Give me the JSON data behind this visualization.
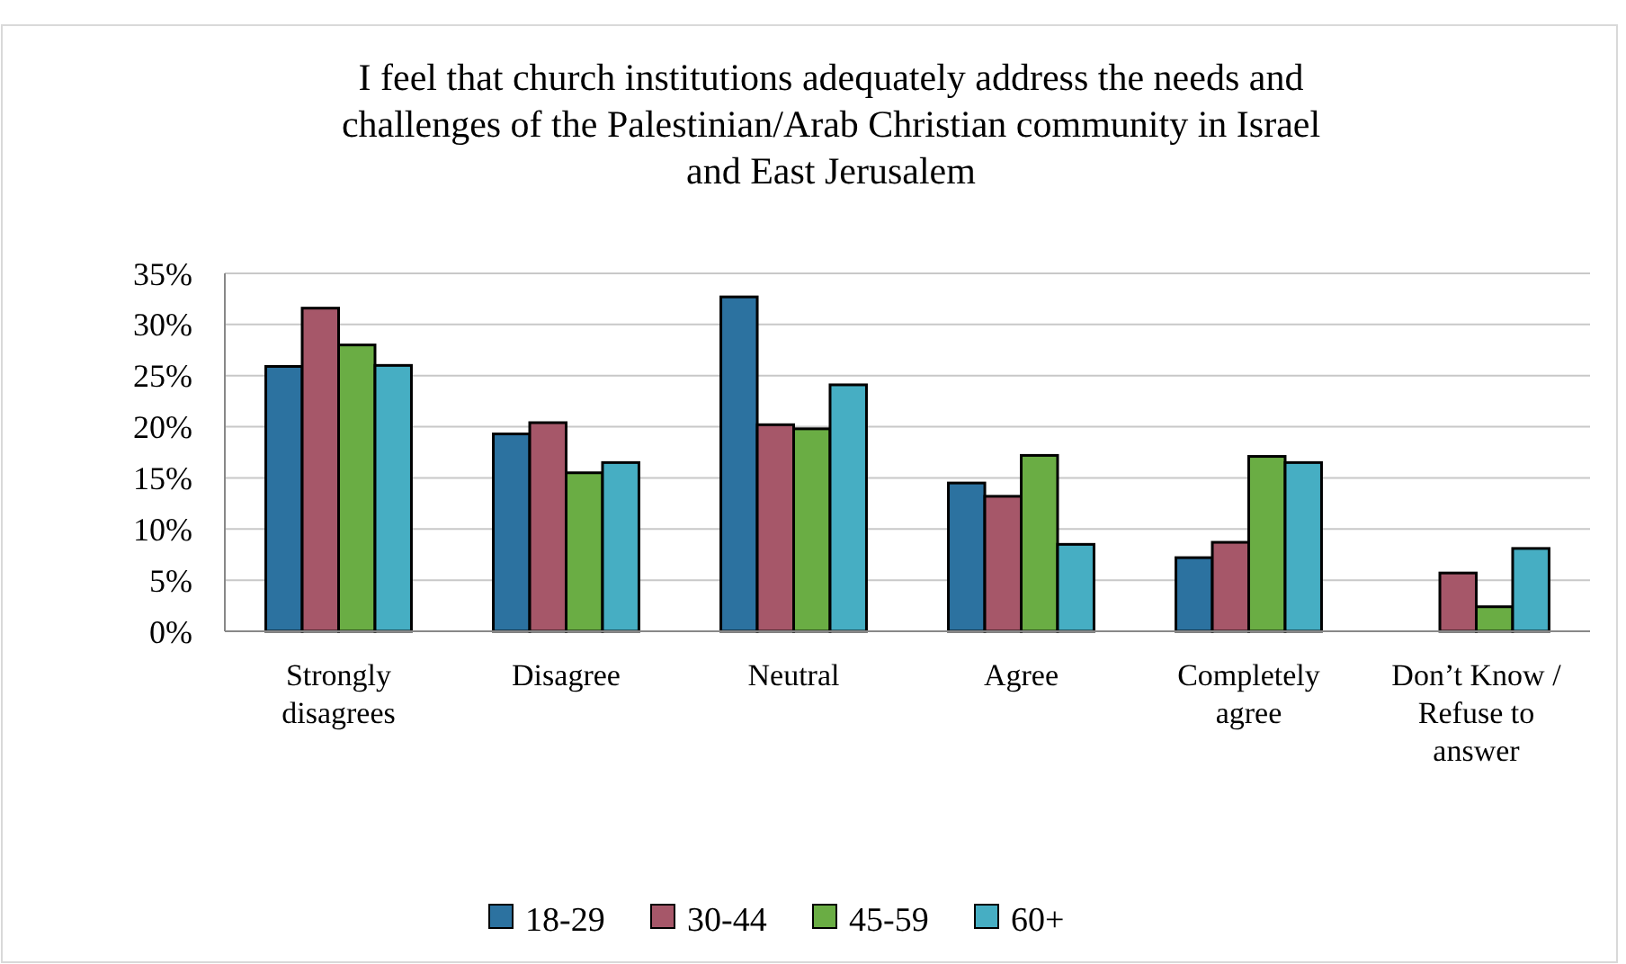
{
  "chart_data": {
    "type": "bar",
    "title": "I feel that church institutions adequately address the needs and challenges of the Palestinian/Arab Christian community in Israel and East Jerusalem",
    "categories": [
      "Strongly disagrees",
      "Disagree",
      "Neutral",
      "Agree",
      "Completely agree",
      "Don’t Know / Refuse to answer"
    ],
    "series": [
      {
        "name": "18-29",
        "color": "#2c72a0",
        "values": [
          25.9,
          19.3,
          32.7,
          14.5,
          7.2,
          null
        ]
      },
      {
        "name": "30-44",
        "color": "#a65769",
        "values": [
          31.6,
          20.4,
          20.2,
          13.2,
          8.7,
          5.7
        ]
      },
      {
        "name": "45-59",
        "color": "#6aad44",
        "values": [
          28,
          15.5,
          19.8,
          17.2,
          17.1,
          2.4
        ]
      },
      {
        "name": "60+",
        "color": "#46aec3",
        "values": [
          26,
          16.5,
          24.1,
          8.5,
          16.5,
          8.1
        ]
      }
    ],
    "ylim": [
      0,
      35
    ],
    "yticks": [
      {
        "value": 0,
        "label": "0%"
      },
      {
        "value": 5,
        "label": "5%"
      },
      {
        "value": 10,
        "label": "10%"
      },
      {
        "value": 15,
        "label": "15%"
      },
      {
        "value": 20,
        "label": "20%"
      },
      {
        "value": 25,
        "label": "25%"
      },
      {
        "value": 30,
        "label": "30%"
      },
      {
        "value": 35,
        "label": "35%"
      }
    ],
    "grid": "y",
    "legend": "bottom"
  }
}
